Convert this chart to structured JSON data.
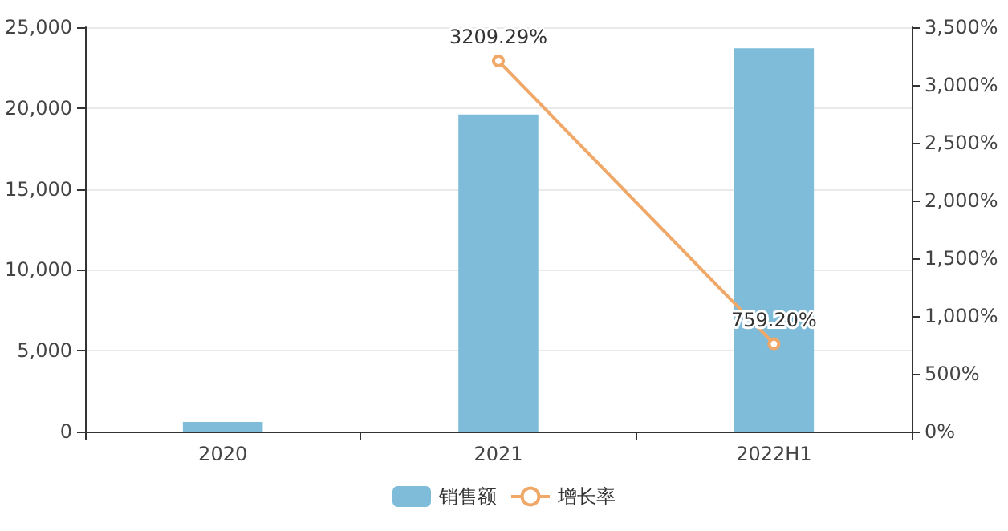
{
  "chart_data": {
    "type": "bar",
    "categories": [
      "2020",
      "2021",
      "2022H1"
    ],
    "series": [
      {
        "name": "销售额",
        "color": "#7ebcd9",
        "values": [
          600,
          19600,
          23700
        ]
      },
      {
        "name": "增长率",
        "type": "line",
        "axis": "y2",
        "color": "#f0a868",
        "values": [
          null,
          3209.29,
          759.2
        ],
        "value_labels": [
          null,
          "3209.29%",
          "759.20%"
        ],
        "marker": "circle"
      }
    ],
    "ylim": [
      0,
      25000
    ],
    "yticks": [
      {
        "value": 0,
        "label": "0"
      },
      {
        "value": 5000,
        "label": "5,000"
      },
      {
        "value": 10000,
        "label": "10,000"
      },
      {
        "value": 15000,
        "label": "15,000"
      },
      {
        "value": 20000,
        "label": "20,000"
      },
      {
        "value": 25000,
        "label": "25,000"
      }
    ],
    "y2lim": [
      0,
      3500
    ],
    "y2ticks": [
      {
        "value": 0,
        "label": "0%"
      },
      {
        "value": 500,
        "label": "500%"
      },
      {
        "value": 1000,
        "label": "1,000%"
      },
      {
        "value": 1500,
        "label": "1,500%"
      },
      {
        "value": 2000,
        "label": "2,000%"
      },
      {
        "value": 2500,
        "label": "2,500%"
      },
      {
        "value": 3000,
        "label": "3,000%"
      },
      {
        "value": 3500,
        "label": "3,500%"
      }
    ],
    "grid": "y",
    "legend": "bottom"
  }
}
